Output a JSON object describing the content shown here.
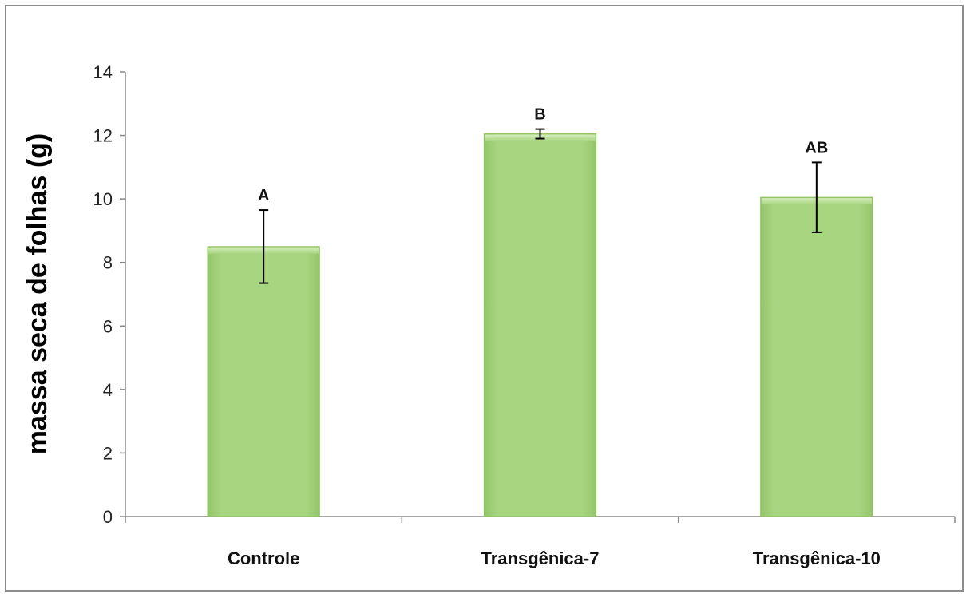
{
  "chart_data": {
    "type": "bar",
    "categories": [
      "Controle",
      "Transgênica-7",
      "Transgênica-10"
    ],
    "values": [
      8.5,
      12.05,
      10.05
    ],
    "errors": [
      1.15,
      0.15,
      1.1
    ],
    "significance_labels": [
      "A",
      "B",
      "AB"
    ],
    "title": "",
    "xlabel": "",
    "ylabel": "massa seca de folhas (g)",
    "ylim": [
      0,
      14
    ],
    "yticks": [
      0,
      2,
      4,
      6,
      8,
      10,
      12,
      14
    ],
    "ytick_labels": [
      "0",
      "2",
      "4",
      "6",
      "8",
      "10",
      "12",
      "14"
    ],
    "grid": false,
    "legend": "none",
    "bar_color": "#a6d37f",
    "bar_edge_color": "#8cbf5e"
  }
}
